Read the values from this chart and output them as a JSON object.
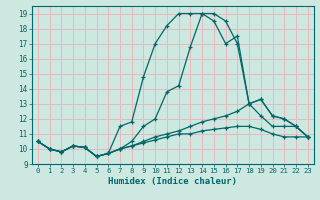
{
  "xlabel": "Humidex (Indice chaleur)",
  "xlim": [
    -0.5,
    23.5
  ],
  "ylim": [
    9,
    19.5
  ],
  "xticks": [
    0,
    1,
    2,
    3,
    4,
    5,
    6,
    7,
    8,
    9,
    10,
    11,
    12,
    13,
    14,
    15,
    16,
    17,
    18,
    19,
    20,
    21,
    22,
    23
  ],
  "yticks": [
    9,
    10,
    11,
    12,
    13,
    14,
    15,
    16,
    17,
    18,
    19
  ],
  "bg_color": "#cce8e0",
  "grid_color": "#e8b8bc",
  "line_color": "#006868",
  "line1_x": [
    0,
    1,
    2,
    3,
    4,
    5,
    6,
    7,
    8,
    9,
    10,
    11,
    12,
    13,
    14,
    15,
    16,
    17,
    18,
    19,
    20,
    21,
    22,
    23
  ],
  "line1_y": [
    10.5,
    10.0,
    9.8,
    10.2,
    10.1,
    9.5,
    9.7,
    11.5,
    11.8,
    14.8,
    17.0,
    18.2,
    19.0,
    19.0,
    19.0,
    18.5,
    17.0,
    17.5,
    13.0,
    13.3,
    12.2,
    12.0,
    11.5,
    10.8
  ],
  "line2_x": [
    0,
    1,
    2,
    3,
    4,
    5,
    6,
    7,
    8,
    9,
    10,
    11,
    12,
    13,
    14,
    15,
    16,
    17,
    18,
    19,
    20,
    21,
    22,
    23
  ],
  "line2_y": [
    10.5,
    10.0,
    9.8,
    10.2,
    10.1,
    9.5,
    9.7,
    10.0,
    10.5,
    11.5,
    12.0,
    13.8,
    14.2,
    16.8,
    19.0,
    19.0,
    18.5,
    17.0,
    13.0,
    13.3,
    12.2,
    12.0,
    11.5,
    10.8
  ],
  "line3_x": [
    0,
    1,
    2,
    3,
    4,
    5,
    6,
    7,
    8,
    9,
    10,
    11,
    12,
    13,
    14,
    15,
    16,
    17,
    18,
    19,
    20,
    21,
    22,
    23
  ],
  "line3_y": [
    10.5,
    10.0,
    9.8,
    10.2,
    10.1,
    9.5,
    9.7,
    10.0,
    10.2,
    10.5,
    10.8,
    11.0,
    11.2,
    11.5,
    11.8,
    12.0,
    12.2,
    12.5,
    13.0,
    12.2,
    11.5,
    11.5,
    11.5,
    10.8
  ],
  "line4_x": [
    0,
    1,
    2,
    3,
    4,
    5,
    6,
    7,
    8,
    9,
    10,
    11,
    12,
    13,
    14,
    15,
    16,
    17,
    18,
    19,
    20,
    21,
    22,
    23
  ],
  "line4_y": [
    10.5,
    10.0,
    9.8,
    10.2,
    10.1,
    9.5,
    9.7,
    10.0,
    10.2,
    10.4,
    10.6,
    10.8,
    11.0,
    11.0,
    11.2,
    11.3,
    11.4,
    11.5,
    11.5,
    11.3,
    11.0,
    10.8,
    10.8,
    10.8
  ]
}
